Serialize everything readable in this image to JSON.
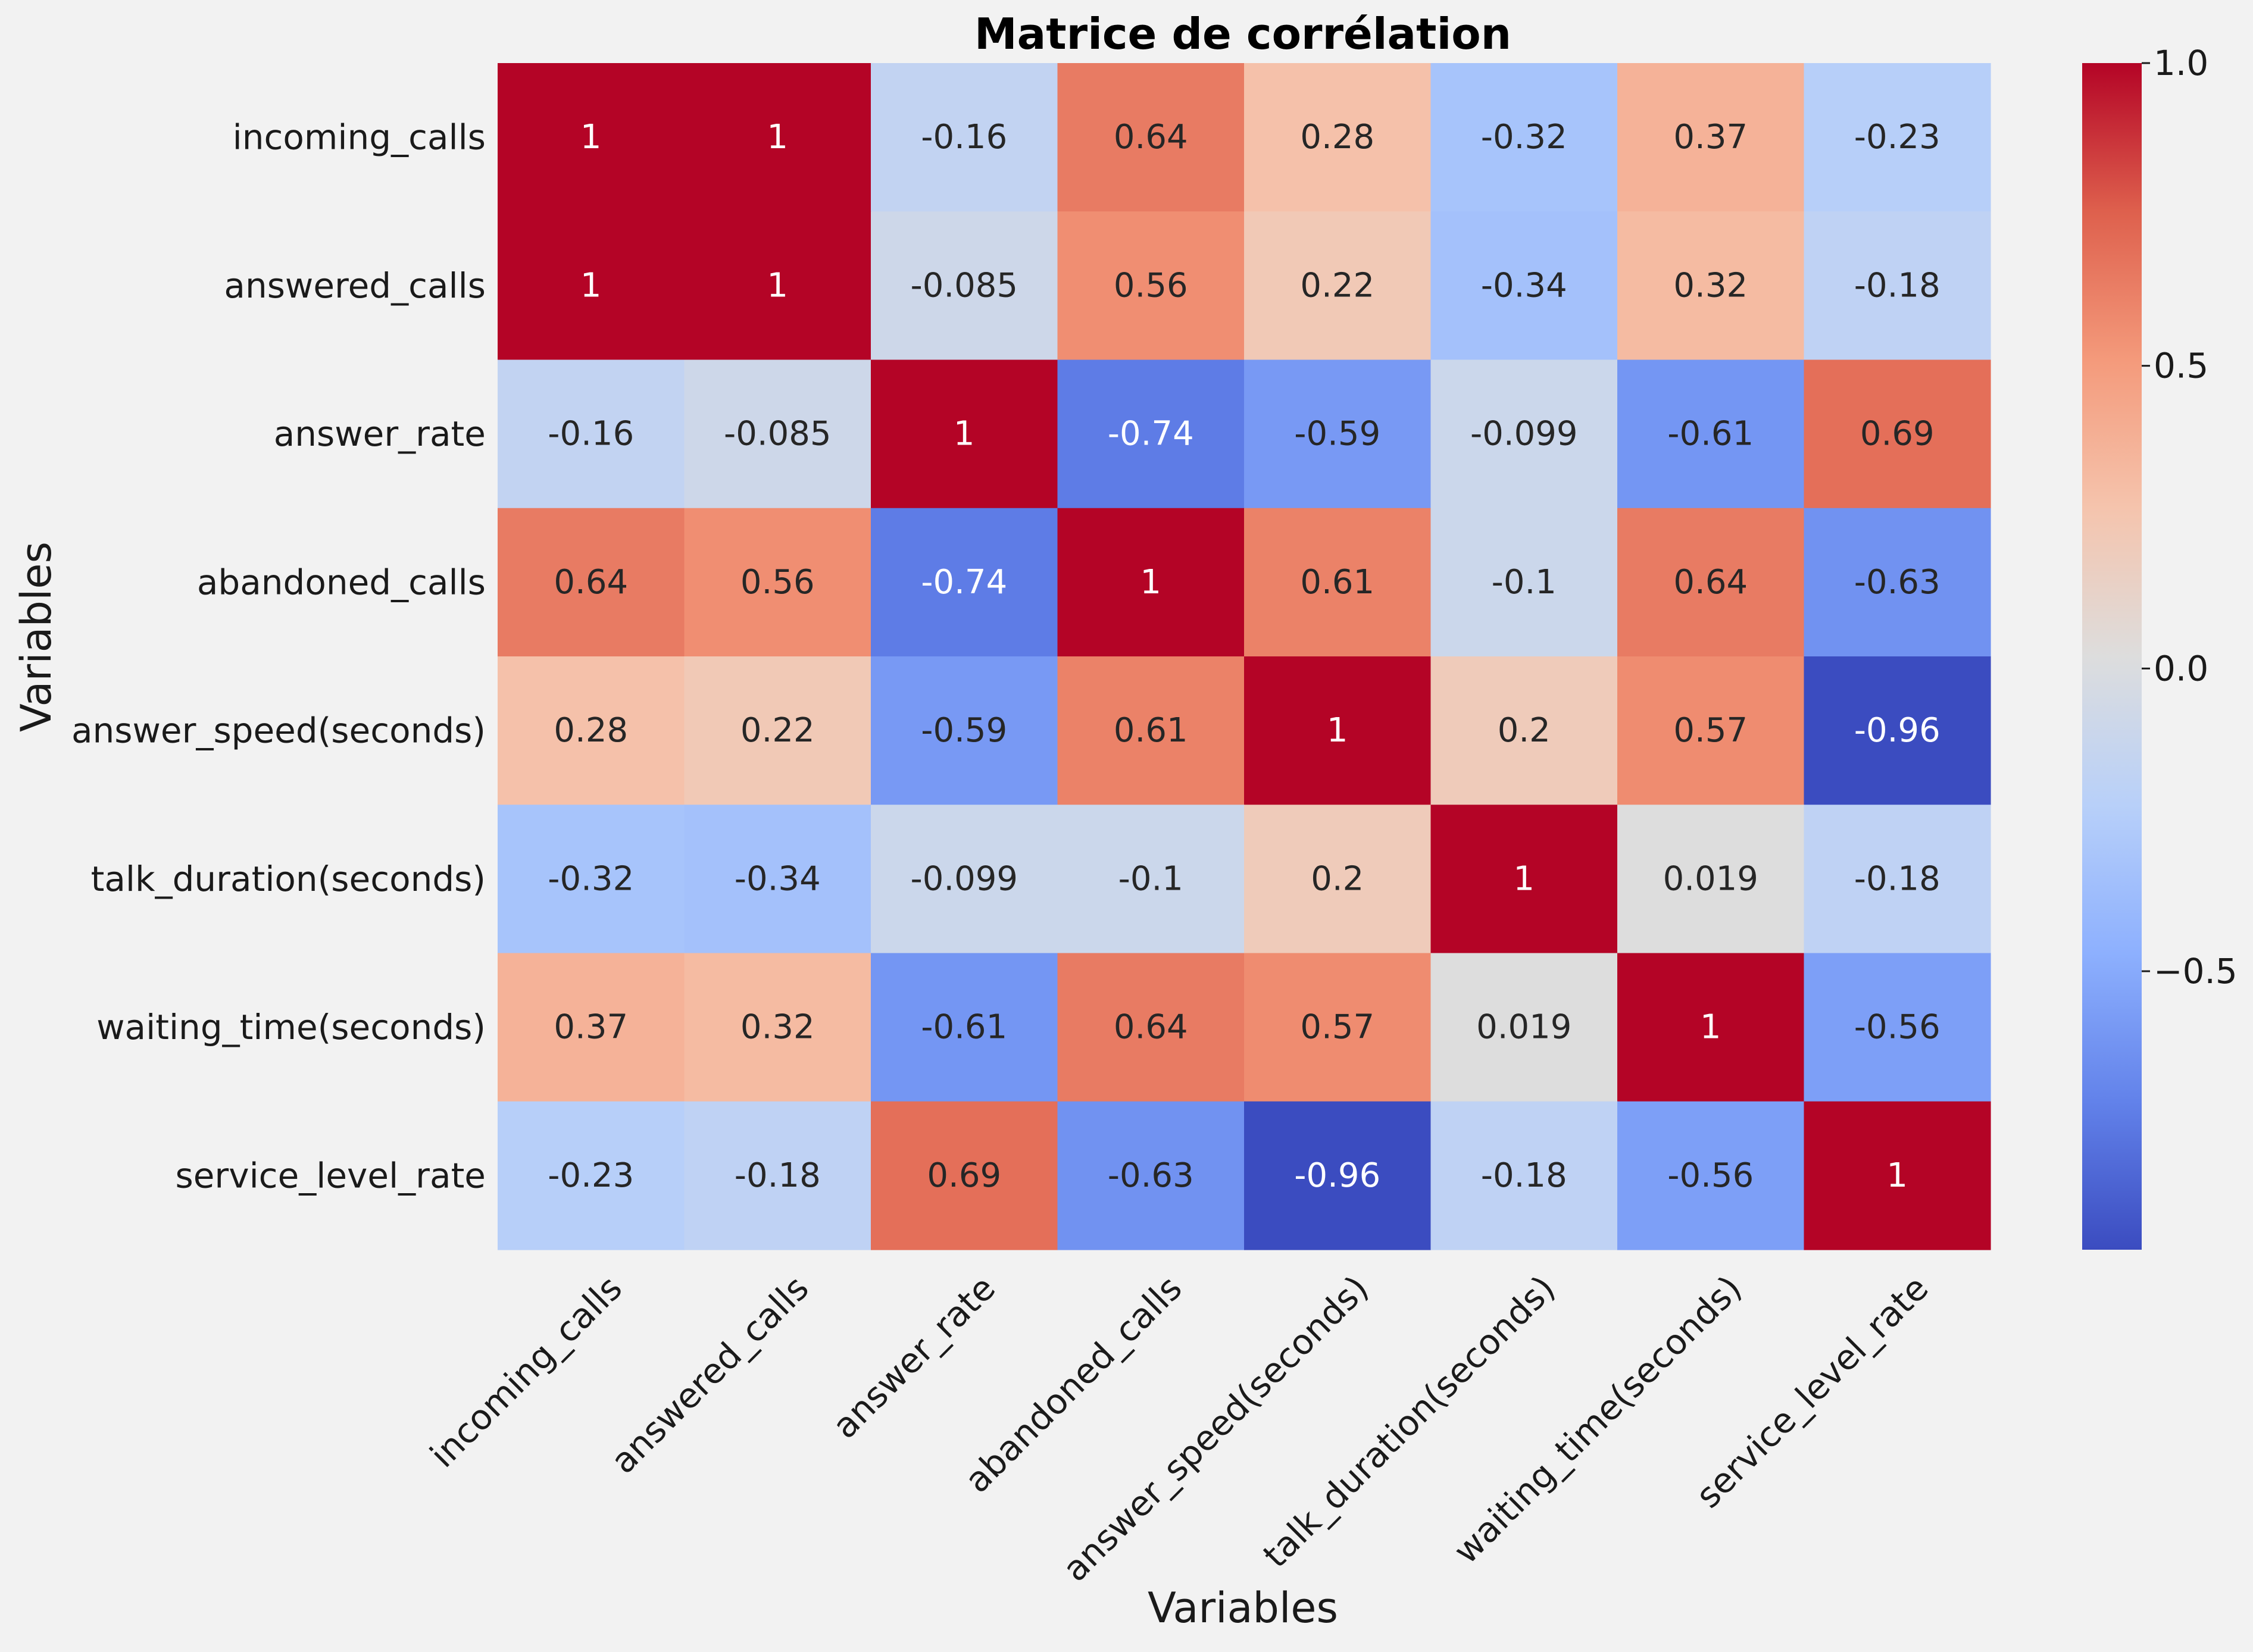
{
  "chart_data": {
    "type": "heatmap",
    "title": "Matrice de corrélation",
    "xlabel": "Variables",
    "ylabel": "Variables",
    "colormap": "coolwarm",
    "colorbar": {
      "vmin": -0.96,
      "vmax": 1.0,
      "ticks": [
        1.0,
        0.5,
        0.0,
        -0.5
      ],
      "tick_labels": [
        "1.0",
        "0.5",
        "0.0",
        "−0.5"
      ]
    },
    "x_categories": [
      "incoming_calls",
      "answered_calls",
      "answer_rate",
      "abandoned_calls",
      "answer_speed(seconds)",
      "talk_duration(seconds)",
      "waiting_time(seconds)",
      "service_level_rate"
    ],
    "y_categories": [
      "incoming_calls",
      "answered_calls",
      "answer_rate",
      "abandoned_calls",
      "answer_speed(seconds)",
      "talk_duration(seconds)",
      "waiting_time(seconds)",
      "service_level_rate"
    ],
    "values": [
      [
        1,
        1,
        -0.16,
        0.64,
        0.28,
        -0.32,
        0.37,
        -0.23
      ],
      [
        1,
        1,
        -0.085,
        0.56,
        0.22,
        -0.34,
        0.32,
        -0.18
      ],
      [
        -0.16,
        -0.085,
        1,
        -0.74,
        -0.59,
        -0.099,
        -0.61,
        0.69
      ],
      [
        0.64,
        0.56,
        -0.74,
        1,
        0.61,
        -0.1,
        0.64,
        -0.63
      ],
      [
        0.28,
        0.22,
        -0.59,
        0.61,
        1,
        0.2,
        0.57,
        -0.96
      ],
      [
        -0.32,
        -0.34,
        -0.099,
        -0.1,
        0.2,
        1,
        0.019,
        -0.18
      ],
      [
        0.37,
        0.32,
        -0.61,
        0.64,
        0.57,
        0.019,
        1,
        -0.56
      ],
      [
        -0.23,
        -0.18,
        0.69,
        -0.63,
        -0.96,
        -0.18,
        -0.56,
        1
      ]
    ],
    "annotations": [
      [
        "1",
        "1",
        "-0.16",
        "0.64",
        "0.28",
        "-0.32",
        "0.37",
        "-0.23"
      ],
      [
        "1",
        "1",
        "-0.085",
        "0.56",
        "0.22",
        "-0.34",
        "0.32",
        "-0.18"
      ],
      [
        "-0.16",
        "-0.085",
        "1",
        "-0.74",
        "-0.59",
        "-0.099",
        "-0.61",
        "0.69"
      ],
      [
        "0.64",
        "0.56",
        "-0.74",
        "1",
        "0.61",
        "-0.1",
        "0.64",
        "-0.63"
      ],
      [
        "0.28",
        "0.22",
        "-0.59",
        "0.61",
        "1",
        "0.2",
        "0.57",
        "-0.96"
      ],
      [
        "-0.32",
        "-0.34",
        "-0.099",
        "-0.1",
        "0.2",
        "1",
        "0.019",
        "-0.18"
      ],
      [
        "0.37",
        "0.32",
        "-0.61",
        "0.64",
        "0.57",
        "0.019",
        "1",
        "-0.56"
      ],
      [
        "-0.23",
        "-0.18",
        "0.69",
        "-0.63",
        "-0.96",
        "-0.18",
        "-0.56",
        "1"
      ]
    ],
    "background_color": "#f2f2f2"
  }
}
